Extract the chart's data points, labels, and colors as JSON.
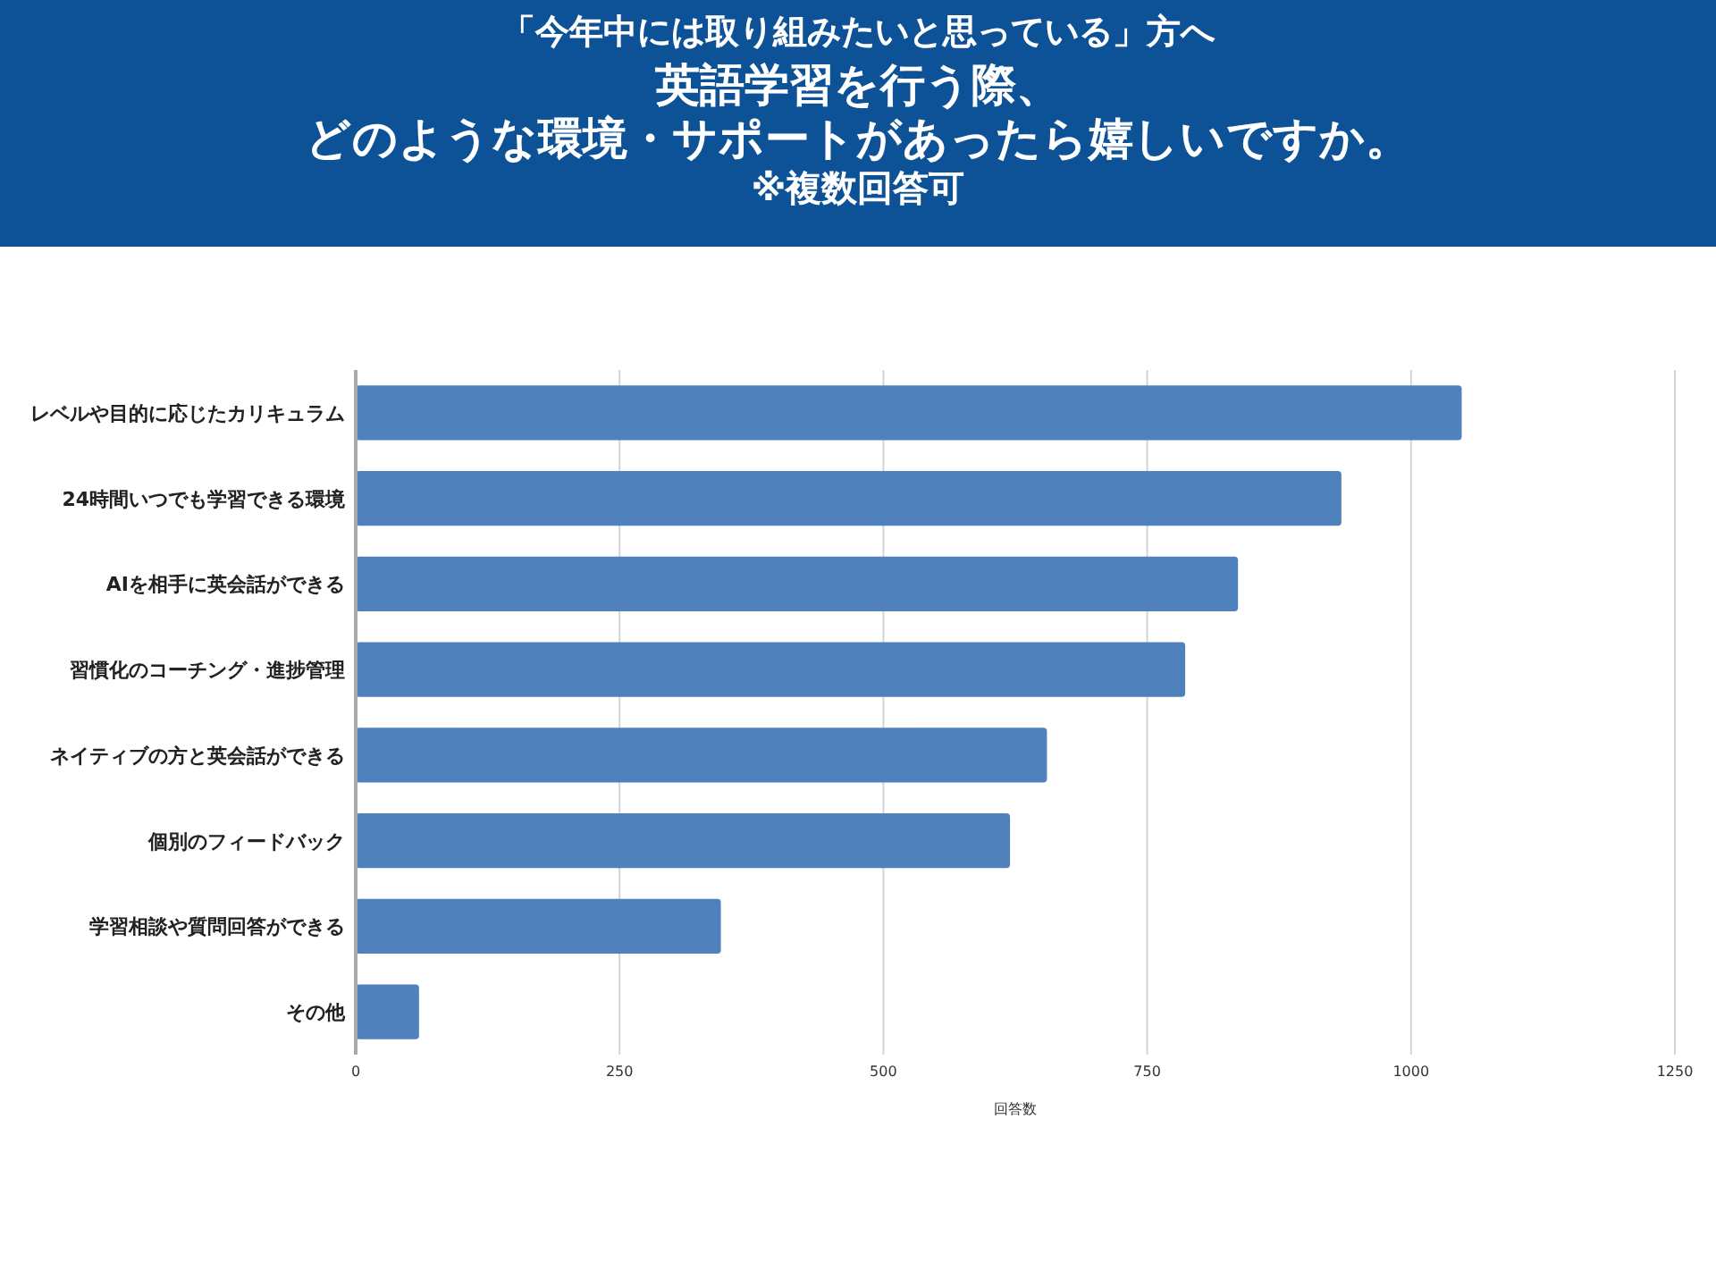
{
  "chart_data": {
    "type": "bar",
    "orientation": "horizontal",
    "subtitle": "「今年中には取り組みたいと思っている」方へ",
    "title": "英語学習を行う際、",
    "annotations": [
      "どのような環境・サポートがあったら嬉しいですか。",
      "※複数回答可"
    ],
    "categories": [
      "レベルや目的に応じたカリキュラム",
      "24時間いつでも学習できる環境",
      "AIを相手に英会話ができる",
      "習慣化のコーチング・進捗管理",
      "ネイティブの方と英会話ができる",
      "個別のフィードバック",
      "学習相談や質問回答ができる",
      "その他"
    ],
    "values": [
      1048,
      934,
      836,
      786,
      655,
      620,
      346,
      60
    ],
    "color": "#4f81bd",
    "xlabel": "回答数",
    "xlim": [
      0,
      1250
    ],
    "xticks": [
      0,
      250,
      500,
      750,
      1000,
      1250
    ],
    "grid": "x"
  }
}
